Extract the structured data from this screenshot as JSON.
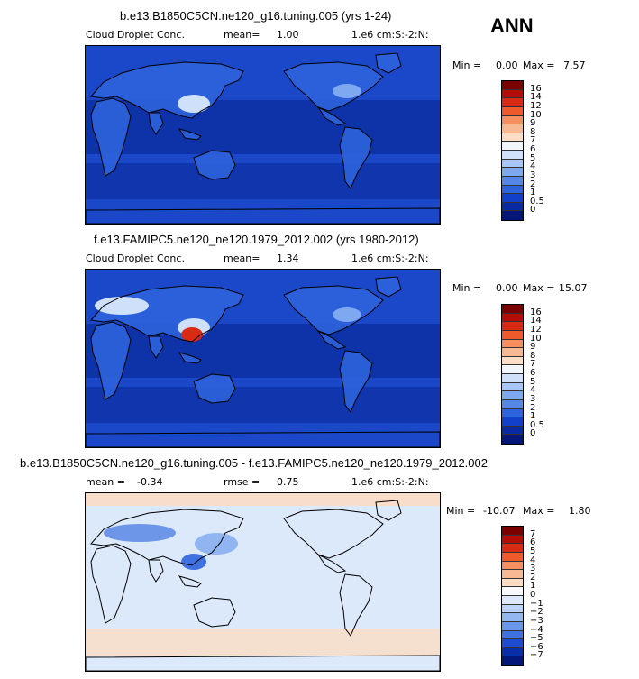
{
  "season": "ANN",
  "panels": [
    {
      "title": "b.e13.B1850C5CN.ne120_g16.tuning.005 (yrs 1-24)",
      "left_label": "Cloud Droplet Conc.",
      "mean_label": "mean=",
      "mean_value": "1.00",
      "units": "1.e6 cm:S:-2:N:",
      "min_label": "Min =",
      "min_value": "0.00",
      "max_label": "Max =",
      "max_value": "7.57",
      "levels": [
        "16",
        "14",
        "12",
        "10",
        "9",
        "8",
        "7",
        "6",
        "5",
        "4",
        "3",
        "2",
        "1",
        "0.5",
        "0"
      ],
      "colors": [
        "#7a0000",
        "#b40d08",
        "#d92b14",
        "#ee5a2a",
        "#f58f5f",
        "#f8b893",
        "#fbdcc4",
        "#f2f6fc",
        "#cfe1fa",
        "#a8c7f6",
        "#7ea8ef",
        "#5487e6",
        "#2d63dc",
        "#1240c9",
        "#0a2aa2",
        "#03167a"
      ]
    },
    {
      "title": "f.e13.FAMIPC5.ne120_ne120.1979_2012.002 (yrs 1980-2012)",
      "left_label": "Cloud Droplet Conc.",
      "mean_label": "mean=",
      "mean_value": "1.34",
      "units": "1.e6 cm:S:-2:N:",
      "min_label": "Min =",
      "min_value": "0.00",
      "max_label": "Max =",
      "max_value": "15.07",
      "levels": [
        "16",
        "14",
        "12",
        "10",
        "9",
        "8",
        "7",
        "6",
        "5",
        "4",
        "3",
        "2",
        "1",
        "0.5",
        "0"
      ],
      "colors": [
        "#7a0000",
        "#b40d08",
        "#d92b14",
        "#ee5a2a",
        "#f58f5f",
        "#f8b893",
        "#fbdcc4",
        "#f2f6fc",
        "#cfe1fa",
        "#a8c7f6",
        "#7ea8ef",
        "#5487e6",
        "#2d63dc",
        "#1240c9",
        "#0a2aa2",
        "#03167a"
      ]
    },
    {
      "title": "b.e13.B1850C5CN.ne120_g16.tuning.005 - f.e13.FAMIPC5.ne120_ne120.1979_2012.002",
      "left_label": "mean =",
      "mean_label": "rmse =",
      "left_value": "-0.34",
      "mean_value": "0.75",
      "units": "1.e6 cm:S:-2:N:",
      "min_label": "Min =",
      "min_value": "-10.07",
      "max_label": "Max =",
      "max_value": "1.80",
      "levels": [
        "7",
        "6",
        "5",
        "4",
        "3",
        "2",
        "1",
        "0",
        "−1",
        "−2",
        "−3",
        "−4",
        "−5",
        "−6",
        "−7"
      ],
      "colors": [
        "#7a0000",
        "#b40d08",
        "#d92b14",
        "#ee5a2a",
        "#f58f5f",
        "#f8b893",
        "#fbdcc4",
        "#f7f9fd",
        "#dce9fb",
        "#bcd4f8",
        "#94b7f2",
        "#6a97ea",
        "#3f72e0",
        "#1c4cd0",
        "#0a2ea8",
        "#03167a"
      ]
    }
  ],
  "map_colors": {
    "ocean_deep": "#0a2a9a",
    "ocean_mid": "#1a48c8",
    "land_low": "#2d63dc",
    "land_mid": "#7ea8ef",
    "land_high": "#cfe1fa",
    "hotspot": "#d92b14",
    "diff_bg": "#dce9fb",
    "diff_pos": "#fbdcc4",
    "diff_neg": "#3f72e0",
    "coast": "#000000"
  }
}
